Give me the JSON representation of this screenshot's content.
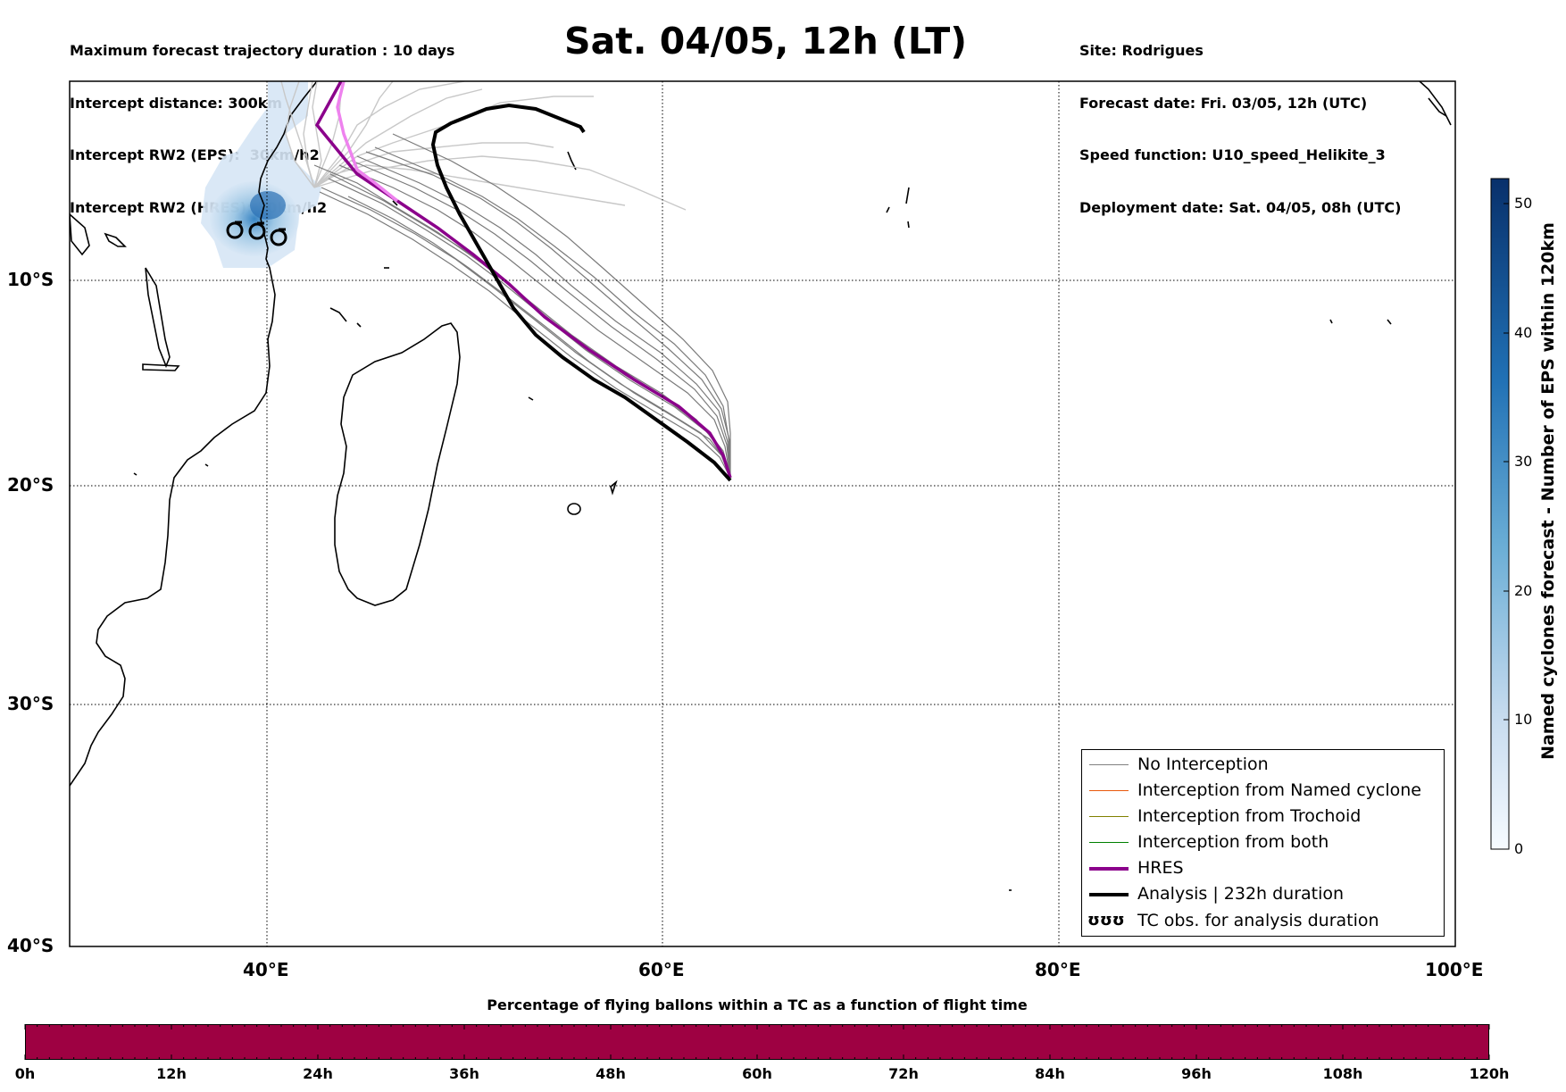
{
  "header": {
    "left_lines": [
      "Maximum forecast trajectory duration : 10 days",
      "Intercept distance: 300km",
      "Intercept RW2 (EPS):  30km/h2",
      "Intercept RW2 (HRES): 30km/h2"
    ],
    "title": "Sat. 04/05, 12h (LT)",
    "right_lines": [
      "Site: Rodrigues",
      "Forecast date: Fri. 03/05, 12h (UTC)",
      "Speed function: U10_speed_Helikite_3",
      "Deployment date: Sat. 04/05, 08h (UTC)"
    ]
  },
  "map": {
    "lat_labels": [
      "10°S",
      "20°S",
      "30°S",
      "40°S"
    ],
    "lon_labels": [
      "40°E",
      "60°E",
      "80°E",
      "100°E"
    ],
    "lon_range": [
      30,
      100
    ],
    "lat_range": [
      -1,
      -40
    ],
    "colors": {
      "no_interception": "#808080",
      "named_cyclone": "#e8590c",
      "trochoid": "#808000",
      "both": "#008000",
      "hres": "#8b008b",
      "analysis": "#000000"
    }
  },
  "legend": {
    "items": [
      {
        "label": "No Interception",
        "color": "#808080"
      },
      {
        "label": "Interception from Named cyclone",
        "color": "#e8590c"
      },
      {
        "label": "Interception from Trochoid",
        "color": "#808000"
      },
      {
        "label": "Interception from both",
        "color": "#008000"
      },
      {
        "label": "HRES",
        "color": "#8b008b"
      },
      {
        "label": "Analysis | 232h duration",
        "color": "#000000"
      },
      {
        "label": "TC obs. for analysis duration",
        "color": "#000000"
      }
    ],
    "tc_symbol": "ʊʊʊ"
  },
  "colorbar": {
    "label": "Named cyclones forecast - Number of EPS within 120km",
    "ticks": [
      "0",
      "10",
      "20",
      "30",
      "40",
      "50"
    ],
    "range": [
      0,
      52
    ]
  },
  "timebar": {
    "title": "Percentage of flying ballons within a TC as a function of flight time",
    "labels": [
      "0h",
      "12h",
      "24h",
      "36h",
      "48h",
      "60h",
      "72h",
      "84h",
      "96h",
      "108h",
      "120h"
    ],
    "color": "#9e0142"
  }
}
